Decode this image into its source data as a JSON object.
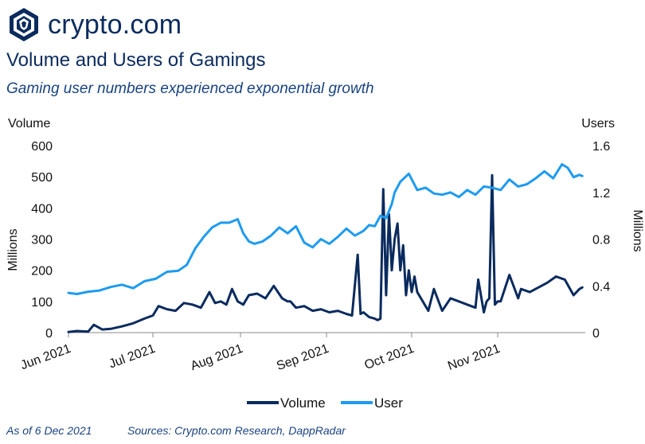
{
  "brand": {
    "name": "crypto.com",
    "logo_icon": "crypto-com-lion-shield-icon"
  },
  "header": {
    "title": "Volume and Users of Gamings",
    "subtitle": "Gaming user numbers experienced exponential growth"
  },
  "footer": {
    "as_of": "As of 6 Dec 2021",
    "sources": "Sources: Crypto.com Research, DappRadar"
  },
  "chart_data": {
    "type": "line",
    "title": "Volume and Users of Gamings",
    "subtitle": "Gaming user numbers experienced exponential growth",
    "left_axis": {
      "label": "Volume",
      "unit": "Millions",
      "range": [
        0,
        600
      ],
      "ticks": [
        "0",
        "100",
        "200",
        "300",
        "400",
        "500",
        "600"
      ]
    },
    "right_axis": {
      "label": "Users",
      "unit": "Millions",
      "range": [
        0,
        1.6
      ],
      "ticks": [
        "0",
        "0.4",
        "0.8",
        "1.2",
        "1.6"
      ]
    },
    "x_axis": {
      "range": [
        "2021-06-01",
        "2021-12-01"
      ],
      "ticks": [
        "Jun 2021",
        "Jul 2021",
        "Aug 2021",
        "Sep 2021",
        "Oct 2021",
        "Nov 2021"
      ]
    },
    "grid": false,
    "legend_position": "bottom",
    "series": [
      {
        "name": "Volume",
        "axis": "left",
        "color": "#0b2b5e",
        "x": [
          "2021-06-01",
          "2021-06-04",
          "2021-06-08",
          "2021-06-10",
          "2021-06-13",
          "2021-06-16",
          "2021-06-20",
          "2021-06-24",
          "2021-06-28",
          "2021-07-01",
          "2021-07-03",
          "2021-07-06",
          "2021-07-09",
          "2021-07-12",
          "2021-07-15",
          "2021-07-18",
          "2021-07-21",
          "2021-07-23",
          "2021-07-25",
          "2021-07-27",
          "2021-07-29",
          "2021-07-31",
          "2021-08-02",
          "2021-08-04",
          "2021-08-07",
          "2021-08-10",
          "2021-08-13",
          "2021-08-16",
          "2021-08-18",
          "2021-08-19",
          "2021-08-21",
          "2021-08-24",
          "2021-08-27",
          "2021-08-30",
          "2021-09-02",
          "2021-09-05",
          "2021-09-08",
          "2021-09-10",
          "2021-09-12",
          "2021-09-13",
          "2021-09-14",
          "2021-09-16",
          "2021-09-18",
          "2021-09-19",
          "2021-09-20",
          "2021-09-21",
          "2021-09-22",
          "2021-09-23",
          "2021-09-24",
          "2021-09-25",
          "2021-09-26",
          "2021-09-27",
          "2021-09-28",
          "2021-09-29",
          "2021-09-30",
          "2021-10-01",
          "2021-10-02",
          "2021-10-03",
          "2021-10-05",
          "2021-10-07",
          "2021-10-09",
          "2021-10-12",
          "2021-10-15",
          "2021-10-18",
          "2021-10-21",
          "2021-10-24",
          "2021-10-25",
          "2021-10-27",
          "2021-10-28",
          "2021-10-29",
          "2021-10-30",
          "2021-10-31",
          "2021-11-01",
          "2021-11-02",
          "2021-11-05",
          "2021-11-08",
          "2021-11-09",
          "2021-11-12",
          "2021-11-15",
          "2021-11-18",
          "2021-11-21",
          "2021-11-24",
          "2021-11-27",
          "2021-11-29",
          "2021-11-30"
        ],
        "values": [
          2,
          5,
          3,
          25,
          10,
          12,
          20,
          30,
          45,
          55,
          85,
          75,
          70,
          95,
          90,
          80,
          130,
          95,
          100,
          90,
          140,
          100,
          90,
          120,
          125,
          110,
          150,
          110,
          100,
          100,
          80,
          85,
          70,
          75,
          65,
          70,
          60,
          55,
          250,
          60,
          65,
          50,
          45,
          40,
          45,
          460,
          120,
          380,
          200,
          300,
          350,
          200,
          280,
          120,
          200,
          130,
          180,
          130,
          100,
          70,
          140,
          70,
          110,
          100,
          90,
          80,
          170,
          65,
          100,
          110,
          505,
          90,
          100,
          100,
          185,
          110,
          140,
          130,
          145,
          160,
          180,
          170,
          120,
          140,
          145
        ]
      },
      {
        "name": "User",
        "axis": "right",
        "color": "#1e9bf0",
        "x": [
          "2021-06-01",
          "2021-06-04",
          "2021-06-08",
          "2021-06-12",
          "2021-06-16",
          "2021-06-20",
          "2021-06-24",
          "2021-06-28",
          "2021-07-02",
          "2021-07-06",
          "2021-07-10",
          "2021-07-13",
          "2021-07-16",
          "2021-07-19",
          "2021-07-22",
          "2021-07-25",
          "2021-07-28",
          "2021-07-31",
          "2021-08-02",
          "2021-08-04",
          "2021-08-06",
          "2021-08-09",
          "2021-08-12",
          "2021-08-15",
          "2021-08-18",
          "2021-08-21",
          "2021-08-24",
          "2021-08-27",
          "2021-08-30",
          "2021-09-02",
          "2021-09-05",
          "2021-09-08",
          "2021-09-11",
          "2021-09-14",
          "2021-09-16",
          "2021-09-18",
          "2021-09-20",
          "2021-09-22",
          "2021-09-24",
          "2021-09-25",
          "2021-09-27",
          "2021-09-30",
          "2021-10-03",
          "2021-10-06",
          "2021-10-09",
          "2021-10-12",
          "2021-10-15",
          "2021-10-18",
          "2021-10-21",
          "2021-10-24",
          "2021-10-27",
          "2021-10-30",
          "2021-11-02",
          "2021-11-05",
          "2021-11-08",
          "2021-11-11",
          "2021-11-14",
          "2021-11-17",
          "2021-11-20",
          "2021-11-23",
          "2021-11-25",
          "2021-11-27",
          "2021-11-29",
          "2021-11-30"
        ],
        "values": [
          0.34,
          0.33,
          0.35,
          0.36,
          0.39,
          0.41,
          0.38,
          0.44,
          0.46,
          0.52,
          0.53,
          0.58,
          0.72,
          0.82,
          0.9,
          0.94,
          0.94,
          0.97,
          0.85,
          0.78,
          0.76,
          0.78,
          0.83,
          0.9,
          0.85,
          0.91,
          0.77,
          0.73,
          0.8,
          0.76,
          0.82,
          0.89,
          0.83,
          0.87,
          0.92,
          0.91,
          1.0,
          0.98,
          1.1,
          1.2,
          1.29,
          1.36,
          1.22,
          1.24,
          1.19,
          1.18,
          1.2,
          1.16,
          1.22,
          1.18,
          1.25,
          1.24,
          1.22,
          1.31,
          1.25,
          1.27,
          1.32,
          1.38,
          1.32,
          1.44,
          1.41,
          1.33,
          1.35,
          1.34
        ]
      }
    ]
  }
}
